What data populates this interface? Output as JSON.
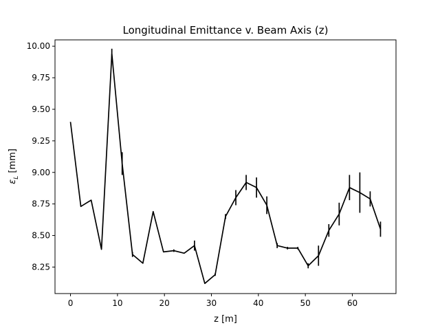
{
  "chart_data": {
    "type": "line",
    "title": "Longitudinal Emittance v. Beam Axis (z)",
    "xlabel": "z [m]",
    "ylabel_prefix": "ε",
    "ylabel_subscript": "L",
    "ylabel_suffix": " [mm]",
    "xlim": [
      -3.3,
      69.3
    ],
    "ylim": [
      8.04,
      10.05
    ],
    "xticks": [
      0,
      10,
      20,
      30,
      40,
      50,
      60
    ],
    "xtick_labels": [
      "0",
      "10",
      "20",
      "30",
      "40",
      "50",
      "60"
    ],
    "yticks": [
      8.25,
      8.5,
      8.75,
      9.0,
      9.25,
      9.5,
      9.75,
      10.0
    ],
    "ytick_labels": [
      "8.25",
      "8.50",
      "8.75",
      "9.00",
      "9.25",
      "9.50",
      "9.75",
      "10.00"
    ],
    "grid": false,
    "series": [
      {
        "color": "#000000",
        "x": [
          0.0,
          2.2,
          4.4,
          6.6,
          8.8,
          11.0,
          13.2,
          15.4,
          17.6,
          19.8,
          22.0,
          24.2,
          26.4,
          28.6,
          30.8,
          33.0,
          35.2,
          37.4,
          39.6,
          41.8,
          44.0,
          46.2,
          48.4,
          50.6,
          52.8,
          55.0,
          57.2,
          59.4,
          61.6,
          63.8,
          66.0
        ],
        "y": [
          9.4,
          8.73,
          8.78,
          8.39,
          9.94,
          9.07,
          8.35,
          8.28,
          8.69,
          8.37,
          8.38,
          8.36,
          8.42,
          8.12,
          8.19,
          8.65,
          8.8,
          8.92,
          8.88,
          8.74,
          8.42,
          8.4,
          8.4,
          8.26,
          8.34,
          8.54,
          8.67,
          8.88,
          8.84,
          8.79,
          8.55
        ],
        "yerr": [
          0.0,
          0.0,
          0.0,
          0.0,
          0.04,
          0.09,
          0.02,
          0.0,
          0.0,
          0.0,
          0.01,
          0.0,
          0.04,
          0.0,
          0.01,
          0.02,
          0.06,
          0.06,
          0.08,
          0.07,
          0.02,
          0.01,
          0.01,
          0.02,
          0.08,
          0.05,
          0.09,
          0.1,
          0.16,
          0.06,
          0.06
        ]
      }
    ]
  }
}
